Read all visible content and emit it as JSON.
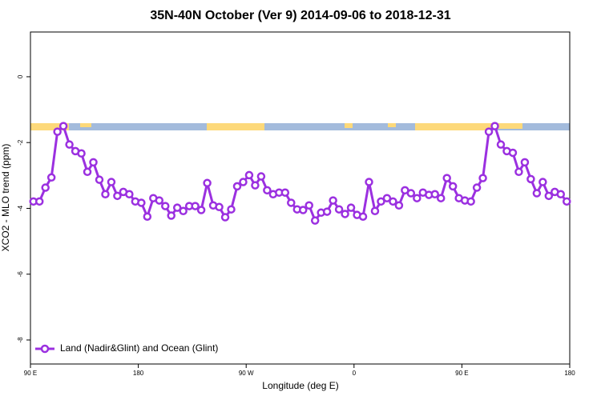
{
  "chart_data": {
    "type": "line",
    "title": "35N-40N October (Ver 9)   2014-09-06 to 2018-12-31",
    "x_label": "Longitude (deg E)",
    "y_label": "XCO2 - MLO trend (ppm)",
    "xlim": [
      90,
      540
    ],
    "ylim": [
      -8.73,
      1.36
    ],
    "xticks": [
      {
        "value": 90,
        "label": "90 E"
      },
      180,
      {
        "value": 270,
        "label": "90 W"
      },
      {
        "value": 360,
        "label": "0"
      },
      {
        "value": 450,
        "label": "90 E"
      },
      {
        "value": 540,
        "label": "180"
      }
    ],
    "yticks": [
      0,
      -2,
      -4,
      -6,
      -8
    ],
    "legend": "bottomleft",
    "x": [
      92.5,
      97.5,
      102.5,
      107.5,
      112.5,
      117.5,
      122.5,
      127.5,
      132.5,
      137.5,
      142.5,
      147.5,
      152.5,
      157.5,
      162.5,
      167.5,
      172.5,
      177.5,
      182.5,
      187.5,
      192.5,
      197.5,
      202.5,
      207.5,
      212.5,
      217.5,
      222.5,
      227.5,
      232.5,
      237.5,
      242.5,
      247.5,
      252.5,
      257.5,
      262.5,
      267.5,
      272.5,
      277.5,
      282.5,
      287.5,
      292.5,
      297.5,
      302.5,
      307.5,
      312.5,
      317.5,
      322.5,
      327.5,
      332.5,
      337.5,
      342.5,
      347.5,
      352.5,
      357.5,
      362.5,
      367.5,
      372.5,
      377.5,
      382.5,
      387.5,
      392.5,
      397.5,
      402.5,
      407.5,
      412.5,
      417.5,
      422.5,
      427.5,
      432.5,
      437.5,
      442.5,
      447.5,
      452.5,
      457.5,
      462.5,
      467.5,
      472.5,
      477.5,
      482.5,
      487.5,
      492.5,
      497.5,
      502.5,
      507.5,
      512.5,
      517.5,
      522.5,
      527.5,
      532.5,
      537.5
    ],
    "series": [
      {
        "name": "Land (Nadir&Glint) and Ocean (Glint)",
        "color": "#9b30e0",
        "values": [
          -3.79,
          -3.79,
          -3.37,
          -3.06,
          -1.67,
          -1.5,
          -2.06,
          -2.26,
          -2.33,
          -2.89,
          -2.6,
          -3.13,
          -3.57,
          -3.2,
          -3.62,
          -3.5,
          -3.57,
          -3.79,
          -3.83,
          -4.25,
          -3.69,
          -3.76,
          -3.93,
          -4.22,
          -3.98,
          -4.08,
          -3.93,
          -3.93,
          -4.05,
          -3.23,
          -3.91,
          -3.96,
          -4.27,
          -4.03,
          -3.33,
          -3.2,
          -2.99,
          -3.3,
          -3.03,
          -3.45,
          -3.57,
          -3.52,
          -3.52,
          -3.83,
          -4.03,
          -4.05,
          -3.91,
          -4.37,
          -4.13,
          -4.1,
          -3.76,
          -4.03,
          -4.17,
          -3.98,
          -4.2,
          -4.25,
          -3.2,
          -4.08,
          -3.79,
          -3.69,
          -3.79,
          -3.91,
          -3.45,
          -3.54,
          -3.69,
          -3.52,
          -3.59,
          -3.57,
          -3.69,
          -3.08,
          -3.33,
          -3.69,
          -3.76,
          -3.79,
          -3.37,
          -3.08,
          -1.67,
          -1.5,
          -2.06,
          -2.26,
          -2.31,
          -2.89,
          -2.6,
          -3.11,
          -3.54,
          -3.2,
          -3.62,
          -3.5,
          -3.57,
          -3.79
        ]
      }
    ]
  }
}
